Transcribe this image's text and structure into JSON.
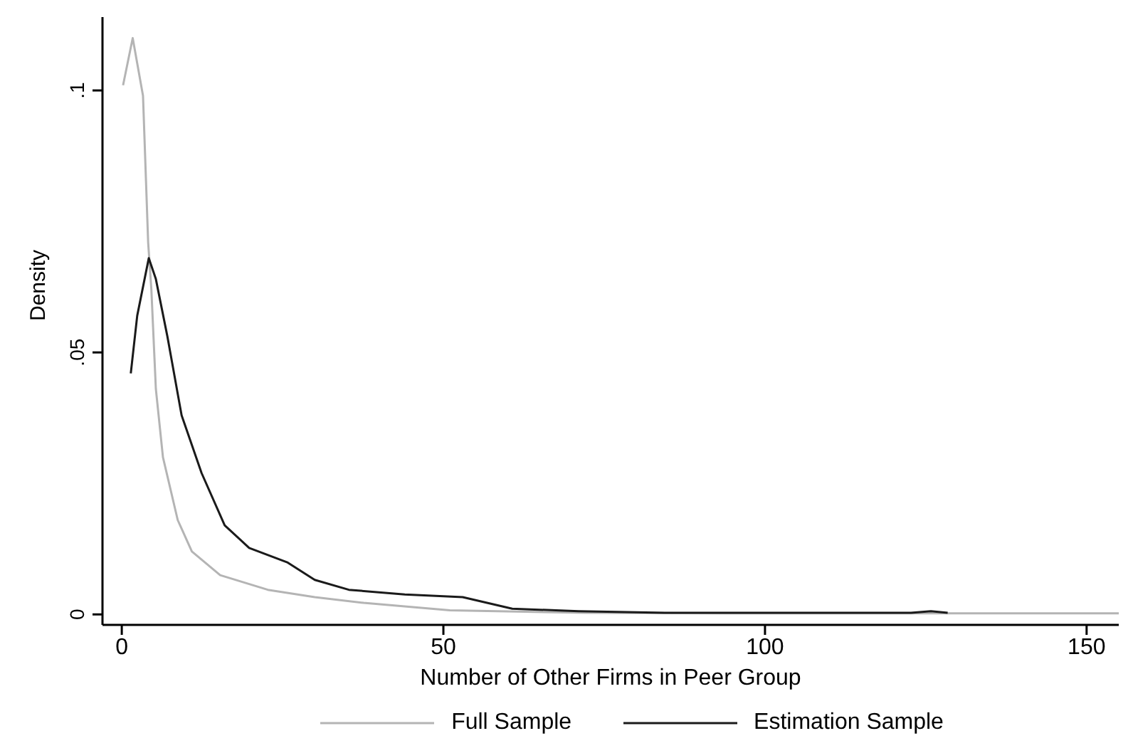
{
  "chart_data": {
    "type": "line",
    "xlabel": "Number of Other Firms in Peer Group",
    "ylabel": "Density",
    "xlim": [
      -3,
      155
    ],
    "xticks": [
      0,
      50,
      100,
      150
    ],
    "ylim": [
      -0.002,
      0.114
    ],
    "yticks": [
      0,
      {
        "value": 0.05,
        "label": ".05"
      },
      {
        "value": 0.1,
        "label": ".1"
      }
    ],
    "grid": false,
    "legend": "bottom",
    "marker": "none",
    "line_style": "solid",
    "series": [
      {
        "name": "Full Sample",
        "color": "#b4b4b4",
        "x": [
          0.2,
          1.7,
          3.3,
          4.1,
          4.6,
          5.3,
          6.4,
          8.7,
          10.9,
          15.3,
          22.7,
          30,
          37.6,
          51,
          72,
          100,
          130,
          155
        ],
        "values": [
          0.101,
          0.11,
          0.099,
          0.071,
          0.062,
          0.043,
          0.03,
          0.018,
          0.012,
          0.0075,
          0.0047,
          0.0033,
          0.0022,
          0.0008,
          0.0003,
          0.0002,
          0.0002,
          0.0002
        ]
      },
      {
        "name": "Estimation Sample",
        "color": "#1a1a1a",
        "x": [
          1.4,
          2.4,
          4.2,
          5.3,
          7.1,
          9.3,
          12.4,
          16,
          19.8,
          25.8,
          30,
          35.3,
          44,
          53,
          60.7,
          71,
          84.4,
          122.7,
          125.8,
          128.4
        ],
        "values": [
          0.046,
          0.057,
          0.068,
          0.064,
          0.053,
          0.038,
          0.027,
          0.017,
          0.0127,
          0.0099,
          0.0066,
          0.0047,
          0.0038,
          0.0033,
          0.0011,
          0.0006,
          0.0003,
          0.0003,
          0.0006,
          0.0003
        ]
      }
    ]
  }
}
